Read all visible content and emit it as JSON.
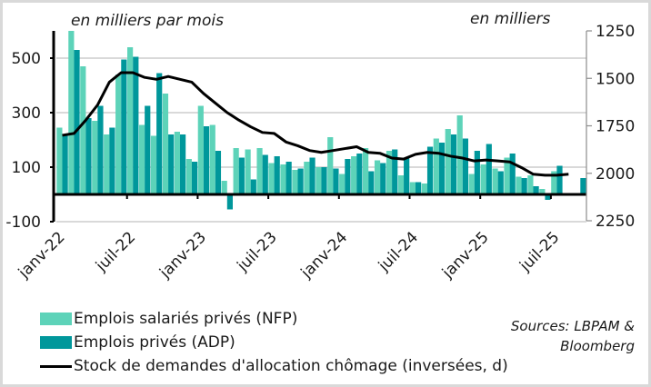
{
  "chart_data": {
    "type": "bar",
    "title": "",
    "left_axis_unit": "en milliers par mois",
    "right_axis_unit": "en milliers",
    "ylim_left": [
      -100,
      600
    ],
    "yticks_left": [
      -100,
      100,
      300,
      500
    ],
    "yticks_left_labels": [
      "-100",
      "100",
      "300",
      "500"
    ],
    "ylim_right_inverted": [
      1250,
      2250
    ],
    "yticks_right": [
      1250,
      1500,
      1750,
      2000,
      2250
    ],
    "yticks_right_labels": [
      "1250",
      "1500",
      "1750",
      "2000",
      "2250"
    ],
    "grid": true,
    "x_tick_labels": [
      "janv-22",
      "juil-22",
      "janv-23",
      "juil-23",
      "janv-24",
      "juil-24",
      "janv-25",
      "juil-25"
    ],
    "x_tick_month_index": [
      0,
      6,
      12,
      18,
      24,
      30,
      36,
      42
    ],
    "months": [
      "2022-01",
      "2022-02",
      "2022-03",
      "2022-04",
      "2022-05",
      "2022-06",
      "2022-07",
      "2022-08",
      "2022-09",
      "2022-10",
      "2022-11",
      "2022-12",
      "2023-01",
      "2023-02",
      "2023-03",
      "2023-04",
      "2023-05",
      "2023-06",
      "2023-07",
      "2023-08",
      "2023-09",
      "2023-10",
      "2023-11",
      "2023-12",
      "2024-01",
      "2024-02",
      "2024-03",
      "2024-04",
      "2024-05",
      "2024-06",
      "2024-07",
      "2024-08",
      "2024-09",
      "2024-10",
      "2024-11",
      "2024-12",
      "2025-01",
      "2025-02",
      "2025-03",
      "2025-04",
      "2025-05",
      "2025-06",
      "2025-07",
      "2025-08",
      "2025-09",
      "2025-10"
    ],
    "series": [
      {
        "name": "Emplois salariés privés (NFP)",
        "type": "bar",
        "axis": "left",
        "color": "#5dd3b9",
        "values": [
          245,
          600,
          470,
          270,
          220,
          440,
          540,
          255,
          215,
          370,
          230,
          130,
          325,
          255,
          50,
          170,
          165,
          170,
          115,
          110,
          90,
          120,
          100,
          210,
          75,
          140,
          170,
          125,
          160,
          70,
          45,
          40,
          205,
          240,
          290,
          75,
          110,
          95,
          135,
          65,
          70,
          20,
          85,
          0,
          0,
          0
        ]
      },
      {
        "name": "Emplois privés (ADP)",
        "type": "bar",
        "axis": "left",
        "color": "#00979b",
        "values": [
          220,
          530,
          280,
          325,
          245,
          495,
          505,
          325,
          445,
          220,
          220,
          120,
          250,
          160,
          -55,
          135,
          55,
          145,
          140,
          120,
          95,
          135,
          100,
          95,
          130,
          150,
          85,
          115,
          165,
          135,
          45,
          175,
          190,
          220,
          205,
          160,
          185,
          85,
          150,
          60,
          30,
          -20,
          105,
          0,
          60,
          0
        ]
      },
      {
        "name": "Stock de demandes d'allocation chômage (inversées, d)",
        "type": "line",
        "axis": "right",
        "color": "#000000",
        "values": [
          1800,
          1790,
          1720,
          1640,
          1520,
          1470,
          1470,
          1495,
          1505,
          1490,
          1505,
          1520,
          1580,
          1630,
          1680,
          1720,
          1755,
          1785,
          1790,
          1835,
          1855,
          1880,
          1890,
          1880,
          1870,
          1860,
          1890,
          1895,
          1920,
          1925,
          1900,
          1890,
          1895,
          1910,
          1920,
          1935,
          1930,
          1935,
          1940,
          1970,
          2005,
          2010,
          2010,
          2005,
          2005,
          2005
        ]
      }
    ],
    "legend_position": "bottom-left"
  },
  "header": {
    "left_unit": "en milliers par mois",
    "right_unit": "en milliers"
  },
  "legend": {
    "nfp": "Emplois salariés privés (NFP)",
    "adp": "Emplois privés (ADP)",
    "claims": "Stock de demandes d'allocation chômage (inversées, d)"
  },
  "sources": {
    "line1": "Sources: LBPAM &",
    "line2": "Bloomberg"
  }
}
